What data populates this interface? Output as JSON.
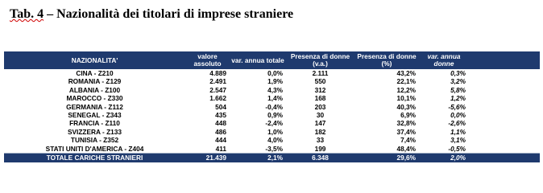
{
  "title": {
    "prefix": "Tab. 4",
    "text": "– Nazionalità dei titolari di imprese straniere"
  },
  "table": {
    "header": [
      "NAZIONALITA'",
      "valore assoluto",
      "var. annua totale",
      "Presenza di donne (v.a.)",
      "Presenza di donne (%)",
      "var. annua donne"
    ],
    "rows": [
      [
        "CINA - Z210",
        "4.889",
        "0,0%",
        "2.111",
        "43,2%",
        "0,3%"
      ],
      [
        "ROMANIA - Z129",
        "2.491",
        "1,9%",
        "550",
        "22,1%",
        "3,2%"
      ],
      [
        "ALBANIA - Z100",
        "2.547",
        "4,3%",
        "312",
        "12,2%",
        "5,8%"
      ],
      [
        "MAROCCO - Z330",
        "1.662",
        "1,4%",
        "168",
        "10,1%",
        "1,2%"
      ],
      [
        "GERMANIA - Z112",
        "504",
        "-0,4%",
        "203",
        "40,3%",
        "-5,6%"
      ],
      [
        "SENEGAL - Z343",
        "435",
        "0,9%",
        "30",
        "6,9%",
        "0,0%"
      ],
      [
        "FRANCIA - Z110",
        "448",
        "-2,4%",
        "147",
        "32,8%",
        "-2,6%"
      ],
      [
        "SVIZZERA - Z133",
        "486",
        "1,0%",
        "182",
        "37,4%",
        "1,1%"
      ],
      [
        "TUNISIA - Z352",
        "444",
        "4,0%",
        "33",
        "7,4%",
        "3,1%"
      ],
      [
        "STATI UNITI D'AMERICA - Z404",
        "411",
        "-3,5%",
        "199",
        "48,4%",
        "-0,5%"
      ]
    ],
    "total": [
      "TOTALE CARICHE STRANIERI",
      "21.439",
      "2,1%",
      "6.348",
      "29,6%",
      "2,0%"
    ]
  }
}
